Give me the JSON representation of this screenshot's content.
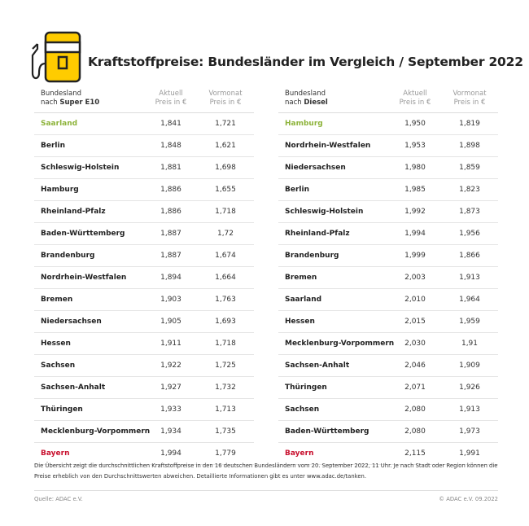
{
  "title": "Kraftstoffpreise: Bundesländer im Vergleich / September 2022",
  "icon": "fuel-pump-icon",
  "colors": {
    "accent": "#ffcc00",
    "cheapest": "#8db33a",
    "most_expensive": "#c8102e"
  },
  "tables": [
    {
      "header": {
        "col1_line1": "Bundesland",
        "col1_line2_prefix": "nach ",
        "col1_fuel": "Super E10",
        "col2_line1": "Aktuell",
        "col2_line2": "Preis in €",
        "col3_line1": "Vormonat",
        "col3_line2": "Preis in €"
      },
      "rows": [
        [
          "Saarland",
          "1,841",
          "1,721"
        ],
        [
          "Berlin",
          "1,848",
          "1,621"
        ],
        [
          "Schleswig-Holstein",
          "1,881",
          "1,698"
        ],
        [
          "Hamburg",
          "1,886",
          "1,655"
        ],
        [
          "Rheinland-Pfalz",
          "1,886",
          "1,718"
        ],
        [
          "Baden-Württemberg",
          "1,887",
          "1,72"
        ],
        [
          "Brandenburg",
          "1,887",
          "1,674"
        ],
        [
          "Nordrhein-Westfalen",
          "1,894",
          "1,664"
        ],
        [
          "Bremen",
          "1,903",
          "1,763"
        ],
        [
          "Niedersachsen",
          "1,905",
          "1,693"
        ],
        [
          "Hessen",
          "1,911",
          "1,718"
        ],
        [
          "Sachsen",
          "1,922",
          "1,725"
        ],
        [
          "Sachsen-Anhalt",
          "1,927",
          "1,732"
        ],
        [
          "Thüringen",
          "1,933",
          "1,713"
        ],
        [
          "Mecklenburg-Vorpommern",
          "1,934",
          "1,735"
        ],
        [
          "Bayern",
          "1,994",
          "1,779"
        ]
      ]
    },
    {
      "header": {
        "col1_line1": "Bundesland",
        "col1_line2_prefix": "nach ",
        "col1_fuel": "Diesel",
        "col2_line1": "Aktuell",
        "col2_line2": "Preis in €",
        "col3_line1": "Vormonat",
        "col3_line2": "Preis in €"
      },
      "rows": [
        [
          "Hamburg",
          "1,950",
          "1,819"
        ],
        [
          "Nordrhein-Westfalen",
          "1,953",
          "1,898"
        ],
        [
          "Niedersachsen",
          "1,980",
          "1,859"
        ],
        [
          "Berlin",
          "1,985",
          "1,823"
        ],
        [
          "Schleswig-Holstein",
          "1,992",
          "1,873"
        ],
        [
          "Rheinland-Pfalz",
          "1,994",
          "1,956"
        ],
        [
          "Brandenburg",
          "1,999",
          "1,866"
        ],
        [
          "Bremen",
          "2,003",
          "1,913"
        ],
        [
          "Saarland",
          "2,010",
          "1,964"
        ],
        [
          "Hessen",
          "2,015",
          "1,959"
        ],
        [
          "Mecklenburg-Vorpommern",
          "2,030",
          "1,91"
        ],
        [
          "Sachsen-Anhalt",
          "2,046",
          "1,909"
        ],
        [
          "Thüringen",
          "2,071",
          "1,926"
        ],
        [
          "Sachsen",
          "2,080",
          "1,913"
        ],
        [
          "Baden-Württemberg",
          "2,080",
          "1,973"
        ],
        [
          "Bayern",
          "2,115",
          "1,991"
        ]
      ]
    }
  ],
  "note": "Die Übersicht zeigt die durchschnittlichen Kraftstoffpreise in den 16 deutschen Bundesländern vom 20. September 2022, 11 Uhr. Je nach Stadt oder Region können die Preise erheblich von den Durchschnittswerten abweichen. Detaillierte Informationen gibt es unter www.adac.de/tanken.",
  "source": "Quelle: ADAC e.V.",
  "copyright": "© ADAC e.V. 09.2022"
}
